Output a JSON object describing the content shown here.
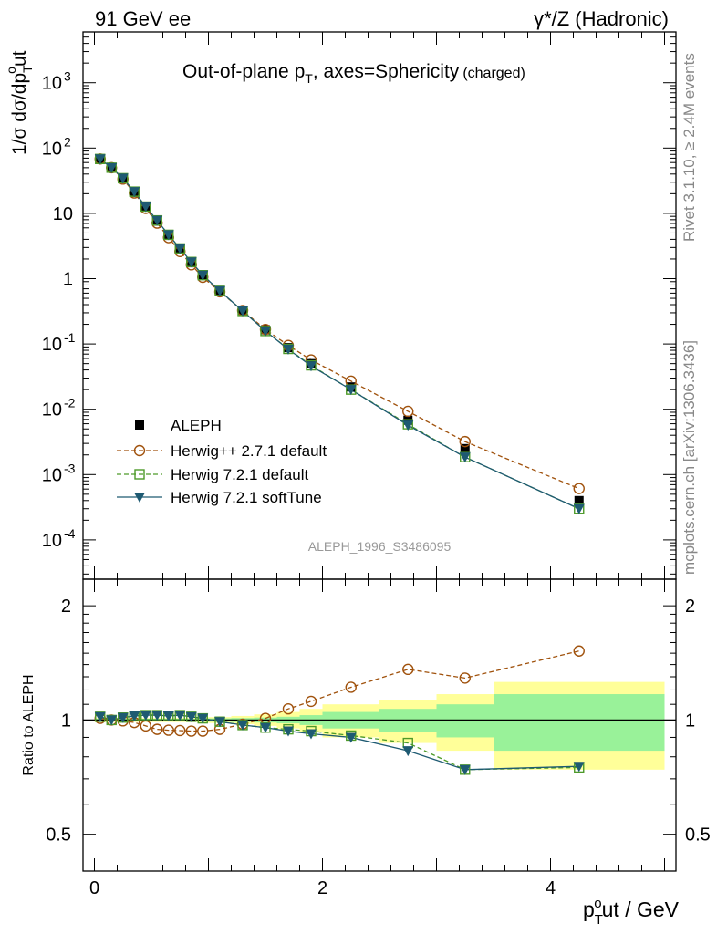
{
  "header": {
    "left": "91 GeV ee",
    "right": "γ*/Z (Hadronic)"
  },
  "side_text": {
    "rivet": "Rivet 3.1.10, ≥ 2.4M events",
    "mcplots": "mcplots.cern.ch [arXiv:1306.3436]"
  },
  "chart_data": [
    {
      "type": "scatter",
      "panel": "main",
      "title_main": "Out-of-plane p",
      "title_sub": "T",
      "title_rest": ", axes=Sphericity",
      "title_small": "(charged)",
      "ylabel": "1/σ dσ/dp",
      "ylabel_sub": "T",
      "ylabel_sup": "o",
      "ylabel_rest": "ut",
      "y_scale": "log",
      "ylim": [
        2.5e-05,
        6000
      ],
      "xlim": [
        -0.1,
        5.1
      ],
      "y_tick_labels": [
        "10",
        "10",
        "10",
        "10",
        "1",
        "10",
        "10",
        "10",
        "10"
      ],
      "y_tick_exponents": [
        "-4",
        "-3",
        "-2",
        "-1",
        "",
        "",
        "2",
        "3"
      ],
      "reference": "ALEPH_1996_S3486095",
      "legend_placement": "middle-left",
      "x": [
        0.05,
        0.15,
        0.25,
        0.35,
        0.45,
        0.55,
        0.65,
        0.75,
        0.85,
        0.95,
        1.1,
        1.3,
        1.5,
        1.7,
        1.9,
        2.25,
        2.75,
        3.25,
        4.25
      ],
      "series": [
        {
          "name": "ALEPH",
          "color": "#000000",
          "marker": "filled-square",
          "values": [
            67,
            50,
            34,
            21,
            12.5,
            7.6,
            4.6,
            2.8,
            1.75,
            1.12,
            0.66,
            0.33,
            0.165,
            0.088,
            0.05,
            0.022,
            0.0068,
            0.0025,
            0.0004
          ]
        },
        {
          "name": "Herwig++ 2.7.1 default",
          "color": "#a0520d",
          "marker": "open-circle",
          "line": "dashed",
          "values": [
            68,
            50,
            33.5,
            20.5,
            11.9,
            7.1,
            4.25,
            2.6,
            1.63,
            1.05,
            0.63,
            0.325,
            0.167,
            0.095,
            0.057,
            0.027,
            0.0093,
            0.0032,
            0.00061
          ]
        },
        {
          "name": "Herwig 7.2.1 default",
          "color": "#4d9a29",
          "marker": "open-square",
          "line": "dashed",
          "values": [
            68,
            50,
            34.5,
            21.5,
            12.7,
            7.8,
            4.7,
            2.9,
            1.8,
            1.13,
            0.65,
            0.32,
            0.158,
            0.084,
            0.047,
            0.02,
            0.0059,
            0.00185,
            0.0003
          ]
        },
        {
          "name": "Herwig 7.2.1 softTune",
          "color": "#1e5a72",
          "marker": "filled-triangle-down",
          "line": "solid",
          "values": [
            68,
            50,
            34.5,
            21.5,
            12.7,
            7.8,
            4.7,
            2.9,
            1.8,
            1.13,
            0.65,
            0.32,
            0.158,
            0.083,
            0.046,
            0.02,
            0.0057,
            0.00185,
            0.0003
          ]
        }
      ]
    },
    {
      "type": "line",
      "panel": "ratio",
      "ylabel": "Ratio to ALEPH",
      "xlabel_main": "p",
      "xlabel_sub": "T",
      "xlabel_sup": "o",
      "xlabel_rest": "ut / GeV",
      "y_scale": "log",
      "ylim": [
        0.4,
        2.35
      ],
      "xlim": [
        -0.1,
        5.1
      ],
      "y_ticks": [
        0.5,
        1,
        2
      ],
      "y_tick_labels": [
        "0.5",
        "1",
        "2"
      ],
      "x_ticks": [
        0,
        2,
        4
      ],
      "x_tick_labels": [
        "0",
        "2",
        "4"
      ],
      "x": [
        0.05,
        0.15,
        0.25,
        0.35,
        0.45,
        0.55,
        0.65,
        0.75,
        0.85,
        0.95,
        1.1,
        1.3,
        1.5,
        1.7,
        1.9,
        2.25,
        2.75,
        3.25,
        4.25
      ],
      "bands": {
        "edges": [
          0,
          0.1,
          0.2,
          0.3,
          0.4,
          0.5,
          0.6,
          0.7,
          0.8,
          0.9,
          1.0,
          1.2,
          1.4,
          1.6,
          1.8,
          2.0,
          2.5,
          3.0,
          3.5,
          5.0
        ],
        "stat": [
          0.008,
          0.008,
          0.008,
          0.008,
          0.008,
          0.008,
          0.008,
          0.008,
          0.008,
          0.01,
          0.01,
          0.012,
          0.015,
          0.02,
          0.03,
          0.05,
          0.07,
          0.1,
          0.17
        ],
        "total": [
          0.012,
          0.012,
          0.012,
          0.012,
          0.012,
          0.012,
          0.012,
          0.012,
          0.012,
          0.015,
          0.018,
          0.025,
          0.035,
          0.05,
          0.07,
          0.1,
          0.13,
          0.17,
          0.26
        ],
        "stat_color": "#99f299",
        "total_color": "#ffff99"
      },
      "series": [
        {
          "name": "Herwig++ 2.7.1 default",
          "color": "#a0520d",
          "marker": "open-circle",
          "line": "dashed",
          "values": [
            1.01,
            1.0,
            0.995,
            0.985,
            0.965,
            0.945,
            0.94,
            0.938,
            0.935,
            0.935,
            0.945,
            0.975,
            1.01,
            1.07,
            1.12,
            1.22,
            1.36,
            1.29,
            1.52
          ]
        },
        {
          "name": "Herwig 7.2.1 default",
          "color": "#4d9a29",
          "marker": "open-square",
          "line": "dashed",
          "values": [
            1.02,
            1.0,
            1.015,
            1.025,
            1.03,
            1.03,
            1.025,
            1.03,
            1.02,
            1.01,
            0.99,
            0.97,
            0.955,
            0.945,
            0.935,
            0.91,
            0.87,
            0.74,
            0.75
          ]
        },
        {
          "name": "Herwig 7.2.1 softTune",
          "color": "#1e5a72",
          "marker": "filled-triangle-down",
          "line": "solid",
          "values": [
            1.02,
            1.0,
            1.015,
            1.025,
            1.03,
            1.03,
            1.025,
            1.03,
            1.02,
            1.01,
            0.99,
            0.97,
            0.955,
            0.935,
            0.92,
            0.9,
            0.83,
            0.74,
            0.755
          ]
        }
      ]
    }
  ]
}
